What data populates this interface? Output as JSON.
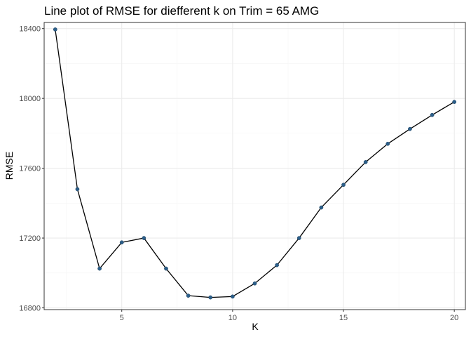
{
  "chart_data": {
    "type": "line",
    "title": "Line plot of RMSE for diefferent k on Trim = 65 AMG",
    "xlabel": "K",
    "ylabel": "RMSE",
    "xlim": [
      1.5,
      20.5
    ],
    "ylim": [
      16790,
      18435
    ],
    "x_ticks": [
      5,
      10,
      15,
      20
    ],
    "y_ticks": [
      16800,
      17200,
      17600,
      18000,
      18400
    ],
    "x_tick_labels": [
      "5",
      "10",
      "15",
      "20"
    ],
    "y_tick_labels": [
      "16800",
      "17200",
      "17600",
      "18000",
      "18400"
    ],
    "grid": true,
    "line_color": "#000000",
    "point_color": "#2c5f8a",
    "panel_border_color": "#333333",
    "grid_major_color": "#ebebeb",
    "grid_minor_color": "#f5f5f5",
    "series": [
      {
        "x": [
          2,
          3,
          4,
          5,
          6,
          7,
          8,
          9,
          10,
          11,
          12,
          13,
          14,
          15,
          16,
          17,
          18,
          19,
          20
        ],
        "values": [
          18395,
          17480,
          17025,
          17175,
          17200,
          17025,
          16870,
          16860,
          16865,
          16940,
          17045,
          17200,
          17375,
          17505,
          17635,
          17740,
          17825,
          17905,
          17980
        ]
      }
    ]
  }
}
